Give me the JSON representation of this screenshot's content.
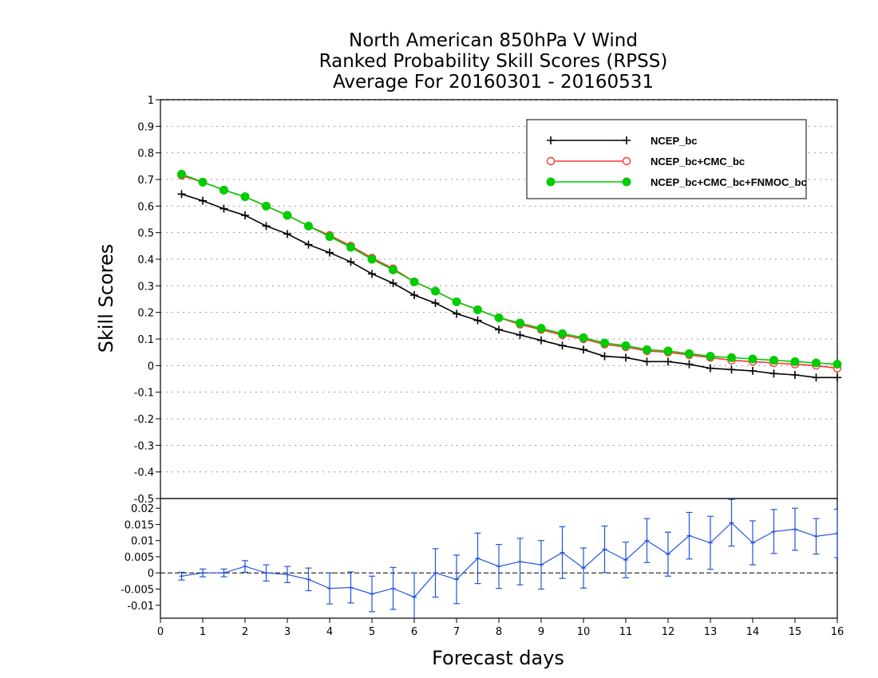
{
  "chart_data": [
    {
      "type": "line",
      "title": [
        "North American 850hPa V Wind",
        "Ranked Probability Skill Scores (RPSS)",
        "Average For 20160301 - 20160531"
      ],
      "xlabel": "Forecast days",
      "ylabel": "Skill Scores",
      "xlim": [
        0,
        16
      ],
      "ylim": [
        -0.5,
        1
      ],
      "x_ticks": [
        "0",
        "1",
        "2",
        "3",
        "4",
        "5",
        "6",
        "7",
        "8",
        "9",
        "10",
        "11",
        "12",
        "13",
        "14",
        "15",
        "16"
      ],
      "y_ticks": [
        "1",
        "0.9",
        "0.8",
        "0.7",
        "0.6",
        "0.5",
        "0.4",
        "0.3",
        "0.2",
        "0.1",
        "0",
        "-0.1",
        "-0.2",
        "-0.3",
        "-0.4",
        "-0.5"
      ],
      "grid": true,
      "legend_position": "top-right",
      "x": [
        0.5,
        1,
        1.5,
        2,
        2.5,
        3,
        3.5,
        4,
        4.5,
        5,
        5.5,
        6,
        6.5,
        7,
        7.5,
        8,
        8.5,
        9,
        9.5,
        10,
        10.5,
        11,
        11.5,
        12,
        12.5,
        13,
        13.5,
        14,
        14.5,
        15,
        15.5,
        16
      ],
      "series": [
        {
          "name": "NCEP_bc",
          "color": "#000000",
          "marker": "plus",
          "values": [
            0.645,
            0.62,
            0.59,
            0.565,
            0.525,
            0.495,
            0.455,
            0.425,
            0.39,
            0.345,
            0.31,
            0.265,
            0.235,
            0.195,
            0.17,
            0.135,
            0.115,
            0.095,
            0.075,
            0.06,
            0.035,
            0.03,
            0.015,
            0.015,
            0.005,
            -0.01,
            -0.015,
            -0.02,
            -0.03,
            -0.035,
            -0.045,
            -0.045
          ]
        },
        {
          "name": "NCEP_bc+CMC_bc",
          "color": "#ff3333",
          "marker": "open-circle",
          "values": [
            0.715,
            0.69,
            0.66,
            0.635,
            0.6,
            0.565,
            0.525,
            0.49,
            0.45,
            0.405,
            0.365,
            0.315,
            0.28,
            0.24,
            0.21,
            0.18,
            0.155,
            0.135,
            0.115,
            0.1,
            0.08,
            0.07,
            0.055,
            0.05,
            0.04,
            0.03,
            0.02,
            0.015,
            0.01,
            0.005,
            0,
            -0.01
          ]
        },
        {
          "name": "NCEP_bc+CMC_bc+FNMOC_bc",
          "color": "#00cc00",
          "marker": "filled-circle",
          "values": [
            0.72,
            0.69,
            0.66,
            0.635,
            0.6,
            0.565,
            0.525,
            0.485,
            0.445,
            0.4,
            0.36,
            0.315,
            0.28,
            0.24,
            0.21,
            0.18,
            0.16,
            0.14,
            0.12,
            0.105,
            0.085,
            0.075,
            0.06,
            0.055,
            0.045,
            0.035,
            0.03,
            0.025,
            0.02,
            0.015,
            0.01,
            0.005
          ]
        }
      ]
    },
    {
      "type": "line",
      "xlabel": "Forecast days",
      "xlim": [
        0,
        16
      ],
      "ylim": [
        -0.014,
        0.023
      ],
      "y_ticks": [
        "0.02",
        "0.015",
        "0.01",
        "0.005",
        "0",
        "-0.005",
        "-0.01"
      ],
      "zero_line": true,
      "x": [
        0.5,
        1,
        1.5,
        2,
        2.5,
        3,
        3.5,
        4,
        4.5,
        5,
        5.5,
        6,
        6.5,
        7,
        7.5,
        8,
        8.5,
        9,
        9.5,
        10,
        10.5,
        11,
        11.5,
        12,
        12.5,
        13,
        13.5,
        14,
        14.5,
        15,
        15.5,
        16
      ],
      "series": [
        {
          "color": "#2255dd",
          "marker": "plus",
          "error_bars": true,
          "values": [
            -0.001,
            0,
            0,
            0.002,
            0,
            -0.0005,
            -0.002,
            -0.0048,
            -0.0045,
            -0.0065,
            -0.0048,
            -0.0075,
            0,
            -0.002,
            0.0045,
            0.002,
            0.0035,
            0.0025,
            0.0063,
            0.0015,
            0.0073,
            0.004,
            0.01,
            0.0058,
            0.0115,
            0.0093,
            0.0155,
            0.0093,
            0.0128,
            0.0135,
            0.0113,
            0.0122
          ],
          "errors": [
            0.0012,
            0.0012,
            0.0012,
            0.0018,
            0.0025,
            0.0025,
            0.0035,
            0.0048,
            0.0048,
            0.0055,
            0.0065,
            0.0075,
            0.0075,
            0.0075,
            0.0078,
            0.0068,
            0.0072,
            0.0075,
            0.008,
            0.0062,
            0.0072,
            0.0055,
            0.0068,
            0.0068,
            0.0072,
            0.0082,
            0.0072,
            0.0068,
            0.0068,
            0.0065,
            0.0055,
            0.0075
          ]
        }
      ]
    }
  ]
}
